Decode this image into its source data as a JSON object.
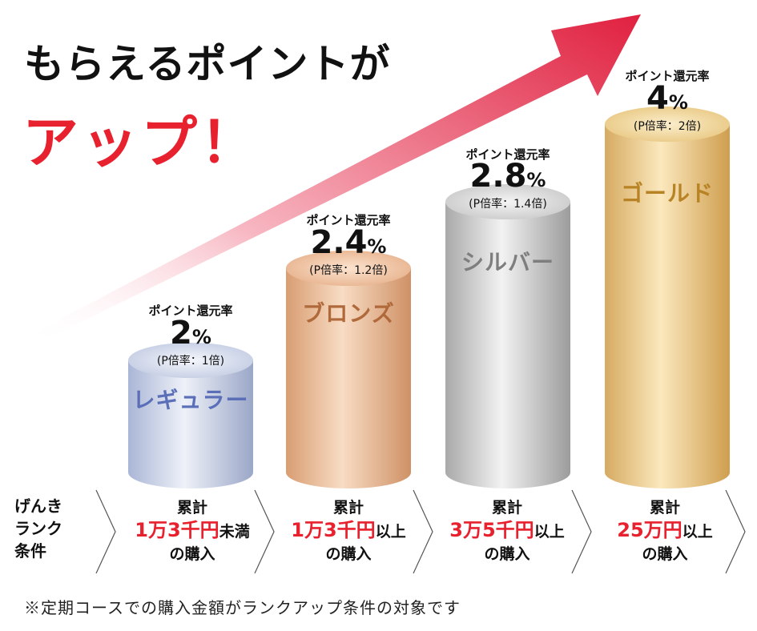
{
  "headline": {
    "line1": "もらえるポイントが",
    "line2": "アップ！"
  },
  "tiers": [
    {
      "rate_label": "ポイント還元率",
      "rate": "2",
      "unit": "%",
      "multiplier": "(P倍率：1倍)",
      "name": "レギュラー",
      "name_color": "#5b6fb8",
      "cond_head": "累計",
      "cond_amount": "1万3千円",
      "cond_suffix": "未満",
      "cond_tail": "の購入"
    },
    {
      "rate_label": "ポイント還元率",
      "rate": "2.4",
      "unit": "%",
      "multiplier": "(P倍率：1.2倍)",
      "name": "ブロンズ",
      "name_color": "#b0693a",
      "cond_head": "累計",
      "cond_amount": "1万3千円",
      "cond_suffix": "以上",
      "cond_tail": "の購入"
    },
    {
      "rate_label": "ポイント還元率",
      "rate": "2.8",
      "unit": "%",
      "multiplier": "(P倍率：1.4倍)",
      "name": "シルバー",
      "name_color": "#7e7e7e",
      "cond_head": "累計",
      "cond_amount": "3万5千円",
      "cond_suffix": "以上",
      "cond_tail": "の購入"
    },
    {
      "rate_label": "ポイント還元率",
      "rate": "4",
      "unit": "%",
      "multiplier": "(P倍率：2倍)",
      "name": "ゴールド",
      "name_color": "#b88325",
      "cond_head": "累計",
      "cond_amount": "25万円",
      "cond_suffix": "以上",
      "cond_tail": "の購入"
    }
  ],
  "condition_label": {
    "line1": "げんき",
    "line2": "ランク",
    "line3": "条件"
  },
  "footnote": "※定期コースでの購入金額がランクアップ条件の対象です",
  "colors": {
    "accent": "#e8212e",
    "arrow": "#e02845"
  }
}
